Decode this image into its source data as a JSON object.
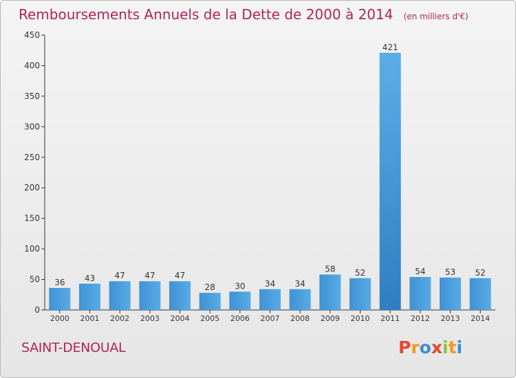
{
  "header": {
    "title": "Remboursements Annuels de la Dette de 2000 à 2014",
    "unit": "(en milliers d'€)"
  },
  "footer": {
    "commune": "SAINT-DENOUAL",
    "logo_letters": [
      "P",
      "r",
      "o",
      "x",
      "i",
      "t",
      "i"
    ],
    "logo_colors": [
      "#e8462e",
      "#f29a1b",
      "#3c8ad8",
      "#e8462e",
      "#8ac33f",
      "#f29a1b",
      "#3c8ad8"
    ]
  },
  "chart_data": {
    "type": "bar",
    "categories": [
      "2000",
      "2001",
      "2002",
      "2003",
      "2004",
      "2005",
      "2006",
      "2007",
      "2008",
      "2009",
      "2010",
      "2011",
      "2012",
      "2013",
      "2014"
    ],
    "values": [
      36,
      43,
      47,
      47,
      47,
      28,
      30,
      34,
      34,
      58,
      52,
      421,
      54,
      53,
      52
    ],
    "yticks": [
      0,
      50,
      100,
      150,
      200,
      250,
      300,
      350,
      400,
      450
    ],
    "ylim": [
      0,
      450
    ],
    "grid": false,
    "bar_color": "#4fa1e0"
  }
}
